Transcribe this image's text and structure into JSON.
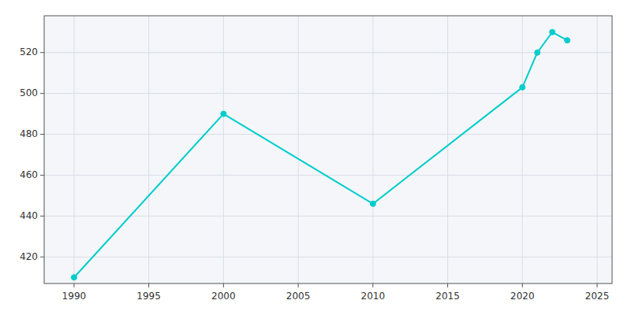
{
  "chart_data": {
    "type": "line",
    "x": [
      1990,
      2000,
      2010,
      2020,
      2021,
      2022,
      2023
    ],
    "values": [
      410,
      490,
      446,
      503,
      520,
      530,
      526
    ],
    "color": "#00CCCC",
    "marker": "circle",
    "xlim": [
      1988,
      2026
    ],
    "ylim": [
      407,
      538
    ],
    "xticks": [
      1990,
      1995,
      2000,
      2005,
      2010,
      2015,
      2020,
      2025
    ],
    "yticks": [
      420,
      440,
      460,
      480,
      500,
      520
    ],
    "grid": true
  }
}
